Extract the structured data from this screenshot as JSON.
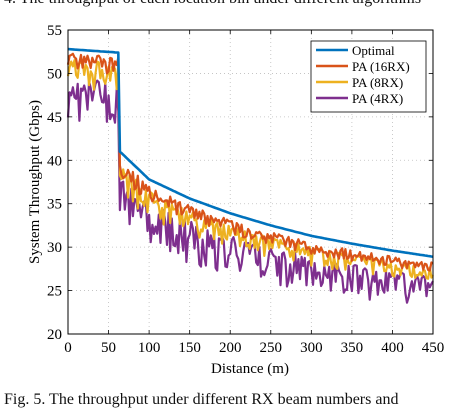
{
  "captions": {
    "top": "4.  The throughput of each location bin under different algorithms",
    "bottom": "Fig. 5.  The throughput under different RX beam numbers and"
  },
  "colors": {
    "optimal": "#0072BD",
    "pa16": "#D95319",
    "pa8": "#EDB120",
    "pa4": "#7E2F8E"
  },
  "chart_data": {
    "type": "line",
    "title": "",
    "xlabel": "Distance (m)",
    "ylabel": "System Throughput (Gbps)",
    "xlim": [
      0,
      450
    ],
    "ylim": [
      20,
      55
    ],
    "xticks": [
      "0",
      "50",
      "100",
      "150",
      "200",
      "250",
      "300",
      "350",
      "400",
      "450"
    ],
    "yticks": [
      "20",
      "25",
      "30",
      "35",
      "40",
      "45",
      "50",
      "55"
    ],
    "grid": "dotted",
    "legend_position": "top-right",
    "step_m": 2,
    "series": [
      {
        "name": "Optimal",
        "color": "#0072BD",
        "x": [
          0,
          62,
          64,
          100,
          150,
          200,
          250,
          300,
          350,
          400,
          450
        ],
        "y": [
          52.8,
          52.4,
          41.0,
          37.8,
          35.6,
          33.9,
          32.5,
          31.3,
          30.4,
          29.6,
          28.9
        ]
      },
      {
        "name": "PA (16RX)",
        "color": "#D95319",
        "x": [
          0,
          62,
          64,
          100,
          150,
          200,
          250,
          300,
          350,
          400,
          450
        ],
        "y": [
          52.3,
          51.9,
          40.2,
          37.0,
          34.8,
          33.1,
          31.7,
          30.6,
          29.7,
          28.9,
          28.2
        ],
        "dip_max": [
          2.0,
          2.0,
          2.2,
          2.0,
          1.8,
          1.6,
          1.5,
          1.4,
          1.3,
          1.2,
          1.2
        ]
      },
      {
        "name": "PA (8RX)",
        "color": "#EDB120",
        "x": [
          0,
          62,
          64,
          100,
          150,
          200,
          250,
          300,
          350,
          400,
          450
        ],
        "y": [
          51.6,
          51.2,
          39.6,
          36.4,
          34.2,
          32.5,
          31.1,
          30.0,
          29.1,
          28.3,
          27.6
        ],
        "dip_max": [
          3.5,
          3.5,
          3.5,
          3.2,
          2.8,
          2.6,
          2.4,
          2.2,
          2.0,
          1.9,
          1.8
        ]
      },
      {
        "name": "PA (4RX)",
        "color": "#7E2F8E",
        "x": [
          0,
          62,
          64,
          100,
          150,
          200,
          250,
          300,
          350,
          400,
          450
        ],
        "y": [
          49.5,
          49.0,
          38.0,
          35.0,
          33.0,
          31.4,
          30.0,
          28.9,
          28.0,
          27.2,
          26.5
        ],
        "dip_max": [
          5.0,
          5.0,
          5.0,
          5.0,
          5.0,
          4.6,
          4.3,
          4.0,
          3.8,
          3.6,
          3.4
        ]
      }
    ]
  }
}
